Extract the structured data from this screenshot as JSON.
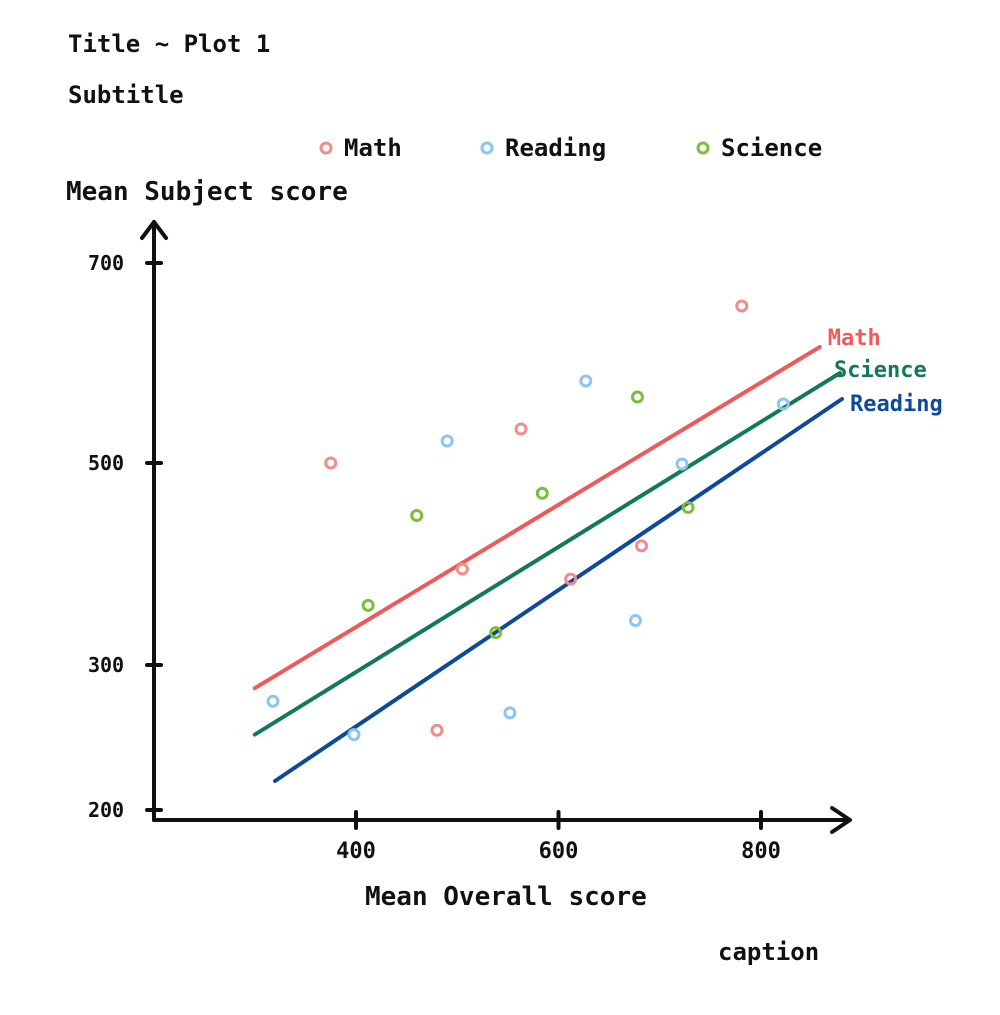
{
  "chart_data": {
    "type": "scatter",
    "title": "Title ~ Plot 1",
    "subtitle": "Subtitle",
    "caption": "caption",
    "xlabel": "Mean Overall score",
    "ylabel": "Mean Subject score",
    "xlim": [
      300,
      880
    ],
    "ylim": [
      200,
      740
    ],
    "x_ticks": [
      400,
      600,
      800
    ],
    "y_ticks": [
      200,
      300,
      500,
      700
    ],
    "grid": false,
    "legend_position": "top",
    "series": [
      {
        "name": "Math",
        "color": "#f08c8c",
        "points": [
          [
            375,
            500
          ],
          [
            480,
            255
          ],
          [
            505,
            395
          ],
          [
            563,
            534
          ],
          [
            612,
            385
          ],
          [
            682,
            418
          ],
          [
            781,
            657
          ]
        ]
      },
      {
        "name": "Reading",
        "color": "#8ec4f0",
        "points": [
          [
            318,
            275
          ],
          [
            398,
            252
          ],
          [
            490,
            522
          ],
          [
            552,
            267
          ],
          [
            627,
            582
          ],
          [
            676,
            344
          ],
          [
            722,
            499
          ],
          [
            822,
            559
          ]
        ]
      },
      {
        "name": "Science",
        "color": "#7cbd3a",
        "points": [
          [
            412,
            359
          ],
          [
            460,
            448
          ],
          [
            538,
            332
          ],
          [
            584,
            470
          ],
          [
            678,
            566
          ],
          [
            728,
            456
          ]
        ]
      }
    ],
    "trend_lines": [
      {
        "name": "Math",
        "color": "#ee5a5a",
        "from": [
          300,
          284
        ],
        "to": [
          858,
          616
        ]
      },
      {
        "name": "Science",
        "color": "#127a55",
        "from": [
          300,
          252
        ],
        "to": [
          878,
          590
        ]
      },
      {
        "name": "Reading",
        "color": "#0d4a9a",
        "from": [
          320,
          220
        ],
        "to": [
          880,
          564
        ]
      }
    ]
  }
}
